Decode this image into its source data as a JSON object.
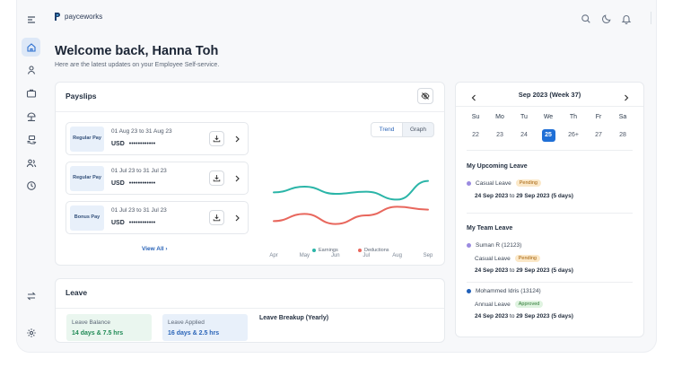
{
  "brand": {
    "logo_text": "payceworks"
  },
  "sidebar": {
    "items": [
      {
        "icon": "home-icon",
        "active": true
      },
      {
        "icon": "user-icon",
        "active": false
      },
      {
        "icon": "briefcase-icon",
        "active": false
      },
      {
        "icon": "umbrella-icon",
        "active": false
      },
      {
        "icon": "money-hand-icon",
        "active": false
      },
      {
        "icon": "users-icon",
        "active": false
      },
      {
        "icon": "clock-icon",
        "active": false
      }
    ],
    "bottom": [
      {
        "icon": "switch-icon"
      },
      {
        "icon": "settings-icon"
      }
    ]
  },
  "topbar": {
    "icons": [
      "search-icon",
      "moon-icon",
      "bell-icon"
    ]
  },
  "welcome": {
    "title": "Welcome back, Hanna Toh",
    "subtitle": "Here are the latest updates on your Employee Self-service."
  },
  "payslips": {
    "title": "Payslips",
    "items": [
      {
        "type": "Regular Pay",
        "period": "01 Aug 23 to 31 Aug 23",
        "currency": "USD",
        "amount": "••••••••••••"
      },
      {
        "type": "Regular Pay",
        "period": "01 Jul 23 to 31 Jul 23",
        "currency": "USD",
        "amount": "••••••••••••"
      },
      {
        "type": "Bonus Pay",
        "period": "01 Jul 23 to 31 Jul 23",
        "currency": "USD",
        "amount": "••••••••••••"
      }
    ],
    "view_all": "View All",
    "toggle": {
      "trend": "Trend",
      "graph": "Graph",
      "selected": "Trend"
    },
    "legend": {
      "earnings": "Earnings",
      "deductions": "Deductions"
    },
    "colors": {
      "earnings": "#2bb5a8",
      "deductions": "#e8675d"
    }
  },
  "chart_data": {
    "type": "line",
    "categories": [
      "Apr",
      "May",
      "Jun",
      "Jul",
      "Aug",
      "Sep"
    ],
    "series": [
      {
        "name": "Earnings",
        "values": [
          0.52,
          0.6,
          0.5,
          0.53,
          0.42,
          0.68
        ]
      },
      {
        "name": "Deductions",
        "values": [
          0.12,
          0.22,
          0.08,
          0.2,
          0.32,
          0.28
        ]
      }
    ],
    "ylim": [
      0,
      1
    ],
    "legend": "bottom",
    "grid": false
  },
  "leave": {
    "title": "Leave",
    "balance": {
      "label": "Leave Balance",
      "value": "14 days & 7.5 hrs"
    },
    "applied": {
      "label": "Leave Applied",
      "value": "16 days & 2.5 hrs"
    },
    "breakup_title": "Leave Breakup (Yearly)"
  },
  "calendar": {
    "title": "Sep 2023 (Week 37)",
    "weekdays": [
      "Su",
      "Mo",
      "Tu",
      "We",
      "Th",
      "Fr",
      "Sa"
    ],
    "dates": [
      "22",
      "23",
      "24",
      "25",
      "26+",
      "27",
      "28"
    ],
    "selected": "25",
    "upcoming_title": "My Upcoming Leave",
    "upcoming": [
      {
        "type": "Casual Leave",
        "status": "Pending",
        "dates": "24 Sep 2023",
        "to": "to",
        "end": "29 Sep 2023",
        "days": "(5 days)"
      }
    ],
    "team_title": "My Team Leave",
    "team": [
      {
        "name": "Suman R (12123)",
        "type": "Casual Leave",
        "status": "Pending",
        "dates": "24 Sep 2023",
        "to": "to",
        "end": "29 Sep 2023",
        "days": "(5 days)",
        "color": "#9b8be0"
      },
      {
        "name": "Mohammed Idris (13124)",
        "type": "Annual Leave",
        "status": "Approved",
        "dates": "24 Sep 2023",
        "to": "to",
        "end": "29 Sep 2023",
        "days": "(5 days)",
        "color": "#1f5fb8"
      }
    ]
  }
}
